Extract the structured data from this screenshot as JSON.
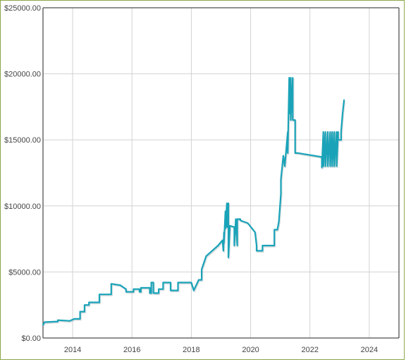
{
  "chart_data": {
    "type": "line",
    "title": "",
    "xlabel": "",
    "ylabel": "",
    "xlim": [
      2013.0,
      2025.0
    ],
    "ylim": [
      0,
      25000
    ],
    "x_ticks": [
      {
        "value": 2014,
        "label": "2014"
      },
      {
        "value": 2016,
        "label": "2016"
      },
      {
        "value": 2018,
        "label": "2018"
      },
      {
        "value": 2020,
        "label": "2020"
      },
      {
        "value": 2022,
        "label": "2022"
      },
      {
        "value": 2024,
        "label": "2024"
      }
    ],
    "y_ticks": [
      {
        "value": 0,
        "label": "$0.00"
      },
      {
        "value": 5000,
        "label": "$5000.00"
      },
      {
        "value": 10000,
        "label": "$10000.00"
      },
      {
        "value": 15000,
        "label": "$15000.00"
      },
      {
        "value": 20000,
        "label": "$20000.00"
      },
      {
        "value": 25000,
        "label": "$25000.00"
      }
    ],
    "grid": true,
    "colors": {
      "line": "#1aa3b8",
      "frame": "#8aa84a",
      "grid": "#d2d2d2"
    },
    "series": [
      {
        "x": [
          2013.0,
          2013.05,
          2013.5,
          2013.5,
          2013.9,
          2014.05,
          2014.25,
          2014.25,
          2014.4,
          2014.4,
          2014.55,
          2014.55,
          2014.9,
          2014.9,
          2015.3,
          2015.3,
          2015.6,
          2015.8,
          2015.8,
          2016.05,
          2016.05,
          2016.25,
          2016.25,
          2016.3,
          2016.3,
          2016.6,
          2016.6,
          2016.65,
          2016.65,
          2016.72,
          2016.72,
          2016.9,
          2016.9,
          2017.05,
          2017.05,
          2017.3,
          2017.3,
          2017.55,
          2017.55,
          2018.0,
          2018.08,
          2018.25,
          2018.35,
          2018.35,
          2018.5,
          2018.9,
          2019.05,
          2019.08,
          2019.1,
          2019.1,
          2019.15,
          2019.15,
          2019.2,
          2019.2,
          2019.25,
          2019.25,
          2019.3,
          2019.3,
          2019.45,
          2019.45,
          2019.5,
          2019.55,
          2019.55,
          2019.65,
          2019.65,
          2019.9,
          2020.15,
          2020.2,
          2020.2,
          2020.4,
          2020.4,
          2020.8,
          2020.8,
          2020.9,
          2020.95,
          2021.02,
          2021.02,
          2021.1,
          2021.15,
          2021.15,
          2021.25,
          2021.25,
          2021.3,
          2021.3,
          2021.35,
          2021.35,
          2021.42,
          2021.42,
          2021.5,
          2021.5,
          2021.5,
          2021.55,
          2021.55,
          2021.6,
          2021.6,
          2022.4,
          2022.4,
          2022.45,
          2022.45,
          2022.52,
          2022.52,
          2022.6,
          2022.6,
          2022.68,
          2022.68,
          2022.75,
          2022.75,
          2022.82,
          2022.82,
          2022.9,
          2022.9,
          2022.95,
          2022.95,
          2023.05,
          2023.05,
          2023.1,
          2023.15
        ],
        "y": [
          1000,
          1200,
          1250,
          1350,
          1300,
          1450,
          1450,
          2000,
          2000,
          2500,
          2500,
          2700,
          2700,
          3300,
          3300,
          4100,
          4000,
          3700,
          3500,
          3500,
          3700,
          3700,
          3500,
          3500,
          3800,
          3800,
          3400,
          3400,
          4200,
          4200,
          3400,
          3400,
          3700,
          3700,
          4200,
          4200,
          3600,
          3600,
          4200,
          4200,
          3600,
          4400,
          4400,
          5200,
          6200,
          7000,
          7400,
          6600,
          8000,
          7200,
          9600,
          8300,
          10200,
          8400,
          10200,
          6100,
          8500,
          8500,
          8400,
          7000,
          9000,
          7000,
          9000,
          9000,
          8900,
          8700,
          8000,
          7000,
          6600,
          6600,
          7000,
          7000,
          8200,
          8200,
          8800,
          10900,
          12000,
          13800,
          13000,
          13000,
          15600,
          14000,
          19700,
          17000,
          19700,
          16500,
          19700,
          16500,
          16500,
          14700,
          14000,
          14000,
          14000,
          14000,
          14000,
          13700,
          12900,
          15600,
          13000,
          15600,
          13000,
          15600,
          13000,
          15600,
          13000,
          15600,
          13000,
          15600,
          13000,
          15600,
          13000,
          15600,
          15000,
          15000,
          15600,
          17000,
          18000
        ]
      }
    ]
  }
}
